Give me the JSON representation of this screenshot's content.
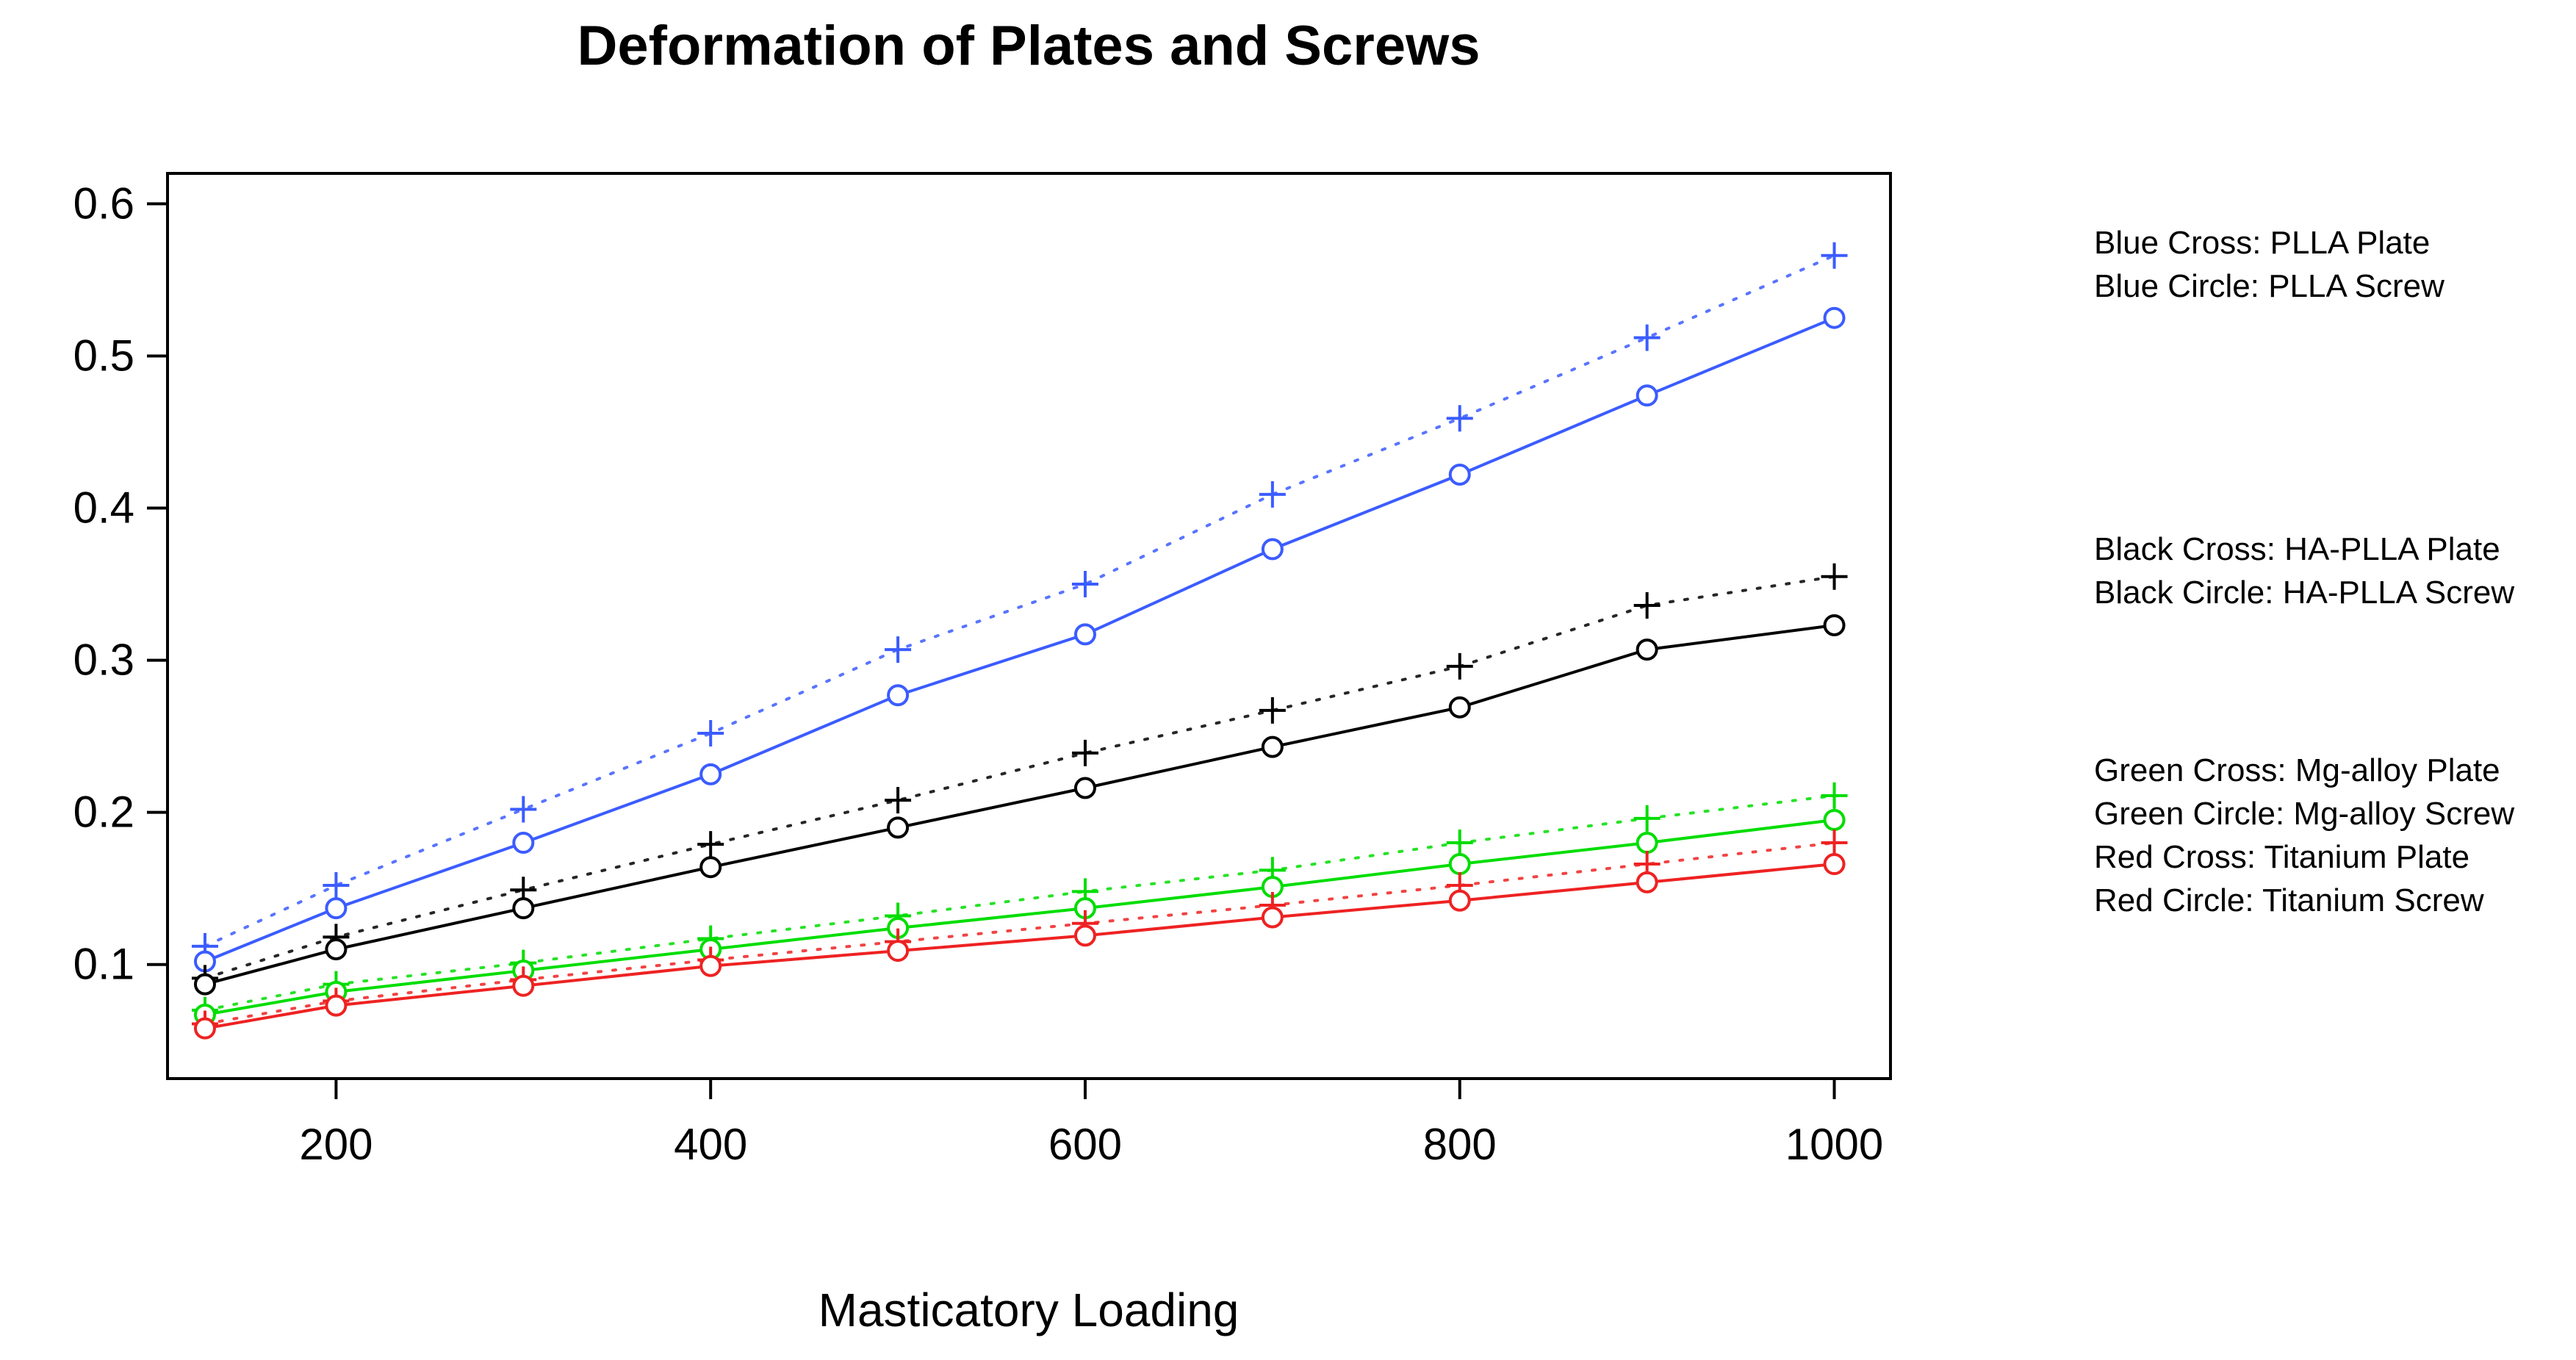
{
  "chart_data": {
    "type": "line",
    "title": "Deformation of Plates and Screws",
    "xlabel": "Masticatory Loading",
    "ylabel": "",
    "xlim": [
      110,
      1030
    ],
    "ylim": [
      0.025,
      0.62
    ],
    "xticks": [
      200,
      400,
      600,
      800,
      1000
    ],
    "yticks": [
      0.1,
      0.2,
      0.3,
      0.4,
      0.5,
      0.6
    ],
    "x": [
      130,
      200,
      300,
      400,
      500,
      600,
      700,
      800,
      900,
      1000
    ],
    "series": [
      {
        "name": "PLLA Plate",
        "color": "#3b5cff",
        "marker": "cross",
        "line": "dotted",
        "values": [
          0.112,
          0.152,
          0.202,
          0.252,
          0.307,
          0.35,
          0.409,
          0.459,
          0.512,
          0.566
        ]
      },
      {
        "name": "PLLA Screw",
        "color": "#3b5cff",
        "marker": "circle",
        "line": "solid",
        "values": [
          0.102,
          0.137,
          0.18,
          0.225,
          0.277,
          0.317,
          0.373,
          0.422,
          0.474,
          0.525
        ]
      },
      {
        "name": "HA-PLLA Plate",
        "color": "#000000",
        "marker": "cross",
        "line": "dotted",
        "values": [
          0.091,
          0.118,
          0.149,
          0.179,
          0.208,
          0.239,
          0.267,
          0.296,
          0.336,
          0.355
        ]
      },
      {
        "name": "HA-PLLA Screw",
        "color": "#000000",
        "marker": "circle",
        "line": "solid",
        "values": [
          0.087,
          0.11,
          0.137,
          0.164,
          0.19,
          0.216,
          0.243,
          0.269,
          0.307,
          0.323
        ]
      },
      {
        "name": "Mg-alloy Plate",
        "color": "#00dd00",
        "marker": "cross",
        "line": "dotted",
        "values": [
          0.07,
          0.087,
          0.101,
          0.117,
          0.132,
          0.148,
          0.162,
          0.18,
          0.196,
          0.211
        ]
      },
      {
        "name": "Mg-alloy Screw",
        "color": "#00dd00",
        "marker": "circle",
        "line": "solid",
        "values": [
          0.067,
          0.082,
          0.096,
          0.11,
          0.124,
          0.137,
          0.151,
          0.166,
          0.18,
          0.195
        ]
      },
      {
        "name": "Titanium Plate",
        "color": "#ee2222",
        "marker": "cross",
        "line": "dotted",
        "values": [
          0.061,
          0.076,
          0.09,
          0.103,
          0.115,
          0.127,
          0.139,
          0.152,
          0.166,
          0.18
        ]
      },
      {
        "name": "Titanium Screw",
        "color": "#ee2222",
        "marker": "circle",
        "line": "solid",
        "values": [
          0.058,
          0.073,
          0.086,
          0.099,
          0.109,
          0.119,
          0.131,
          0.142,
          0.154,
          0.166
        ]
      }
    ],
    "legend": {
      "position": "right",
      "groups": [
        [
          "Blue Cross: PLLA Plate",
          "Blue Circle: PLLA Screw"
        ],
        [
          "Black Cross: HA-PLLA Plate",
          "Black Circle: HA-PLLA Screw"
        ],
        [
          "Green Cross: Mg-alloy Plate",
          "Green Circle: Mg-alloy Screw",
          "Red Cross: Titanium Plate",
          "Red Circle: Titanium Screw"
        ]
      ]
    }
  }
}
